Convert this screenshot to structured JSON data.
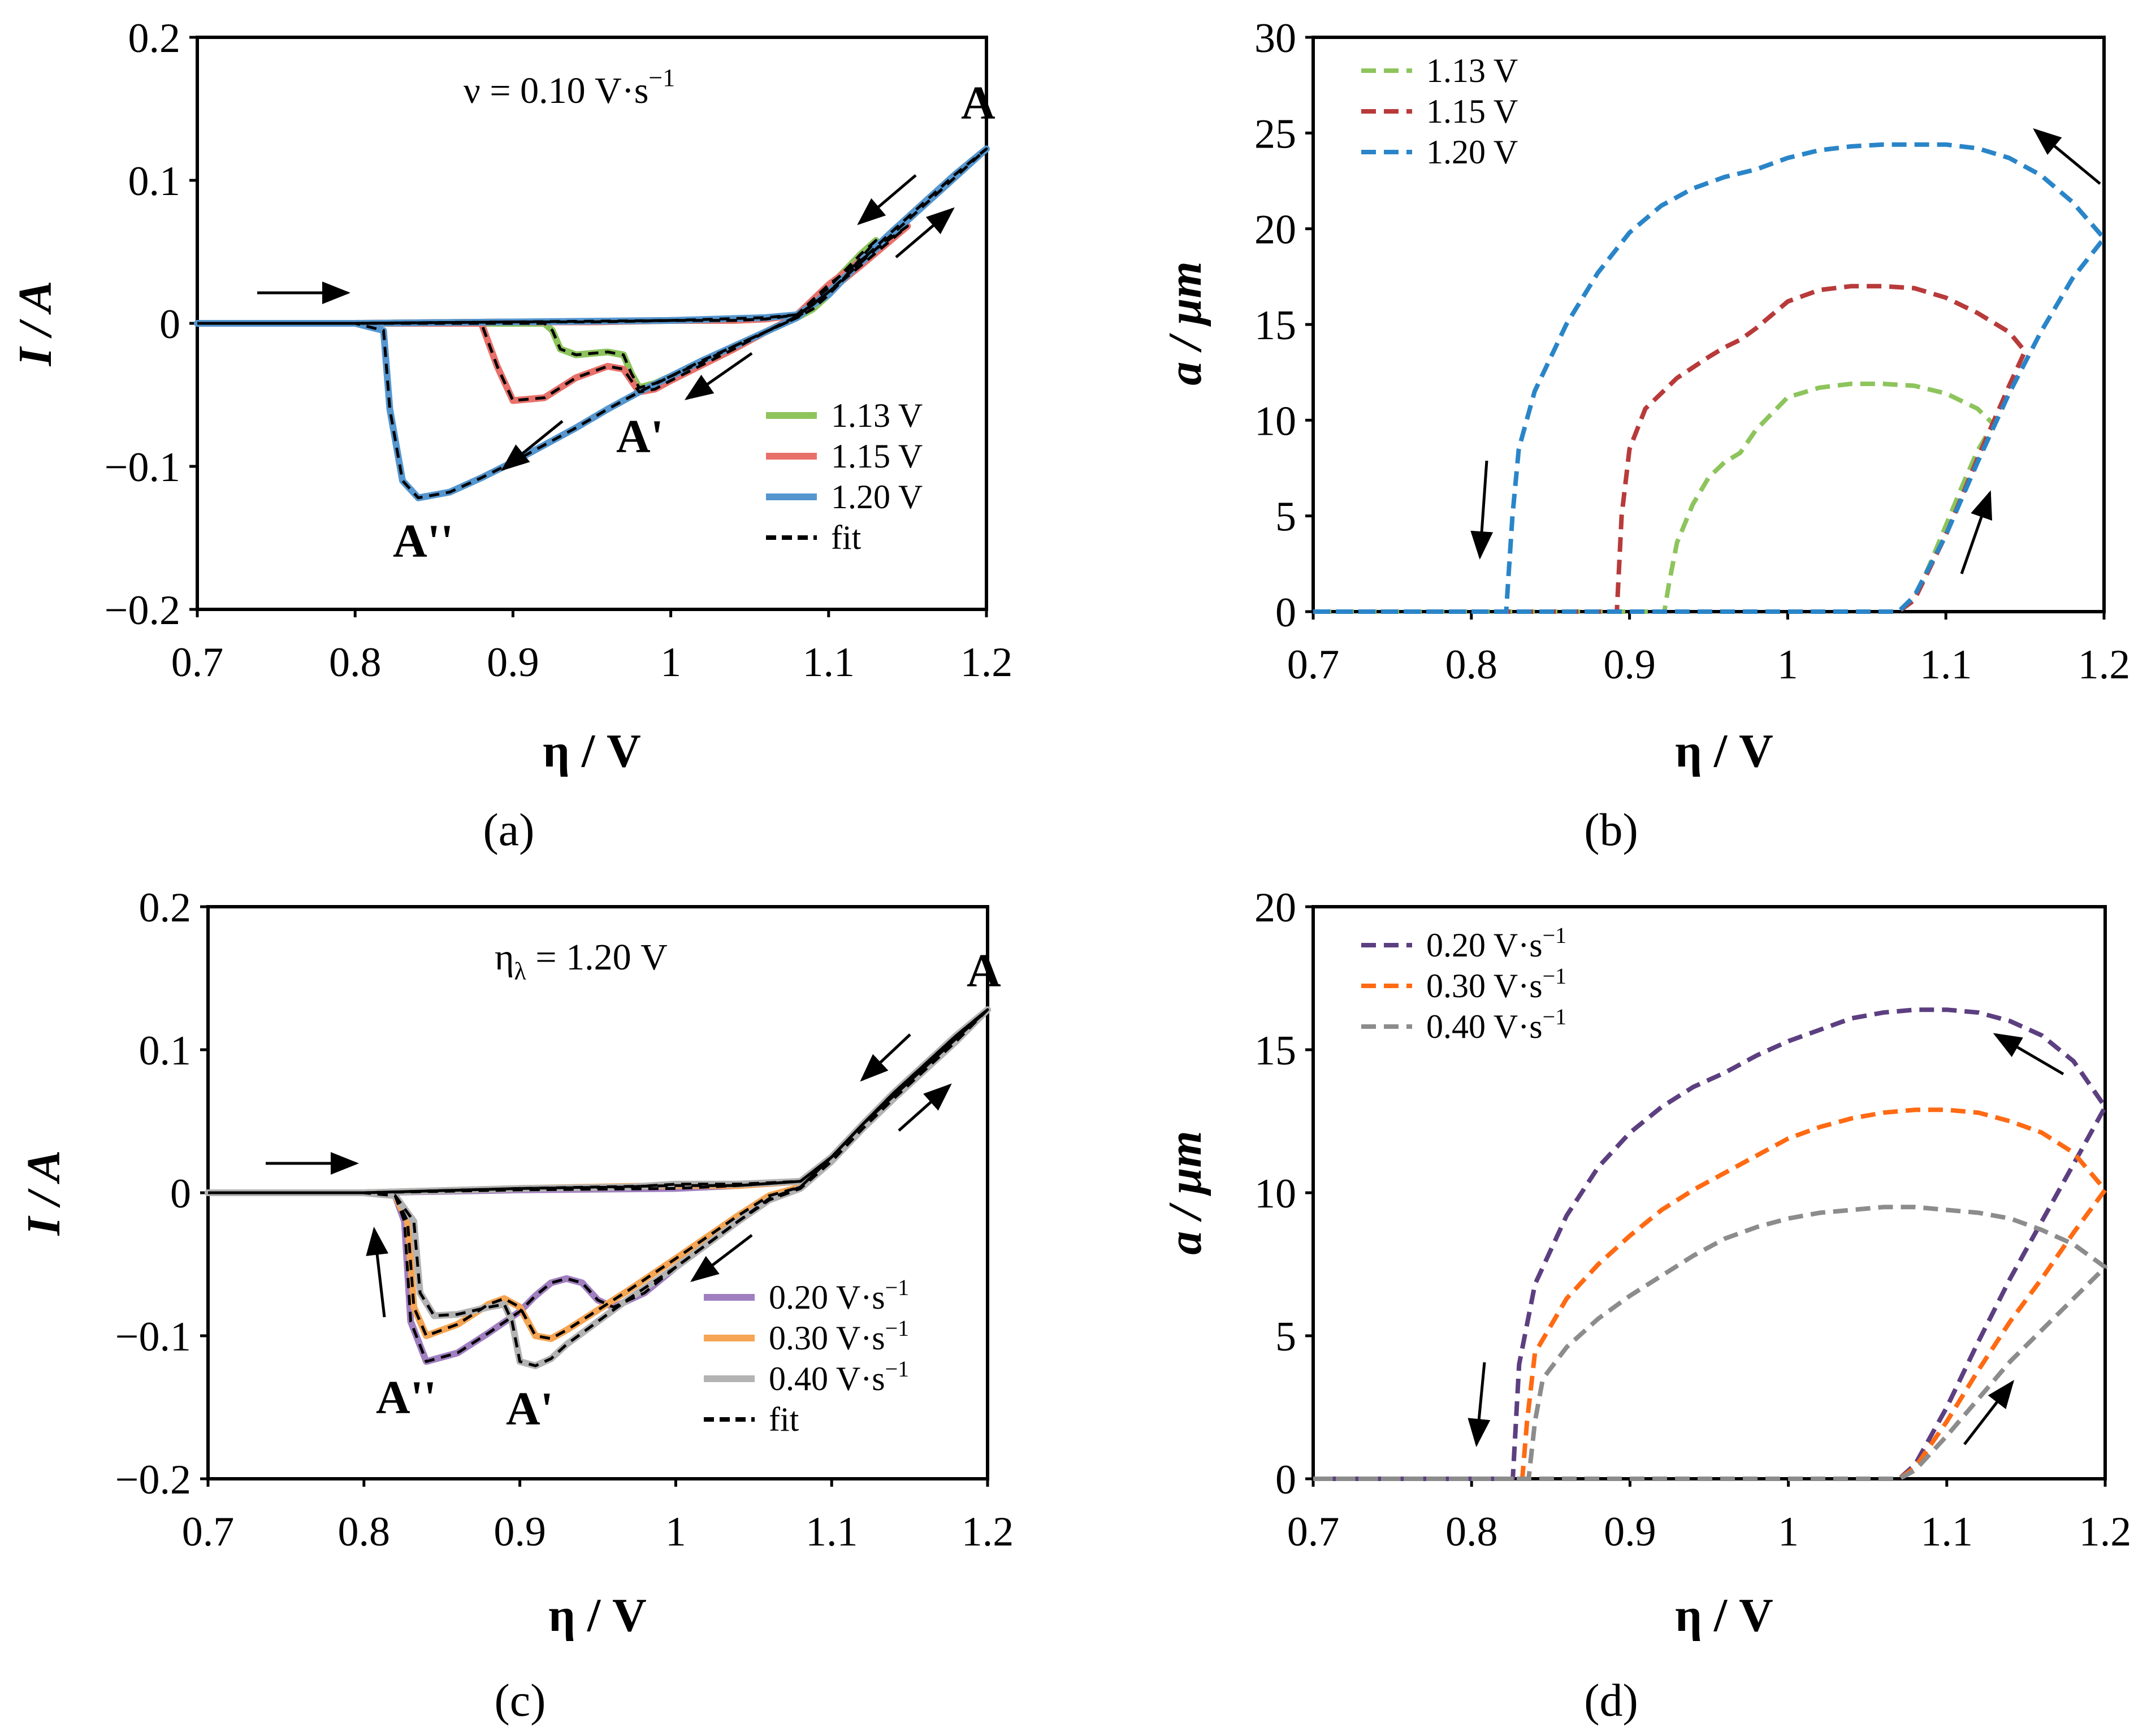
{
  "chart_data": [
    {
      "panel": "(a)",
      "type": "line",
      "xlabel": "η / V",
      "ylabel": "I / A",
      "xlim": [
        0.7,
        1.2
      ],
      "ylim": [
        -0.2,
        0.2
      ],
      "xticks": [
        "0.7",
        "0.8",
        "0.9",
        "1",
        "1.1",
        "1.2"
      ],
      "yticks": [
        "0.2",
        "0.1",
        "0",
        "−0.1",
        "−0.2"
      ],
      "annotation": "ν = 0.10 V·s",
      "annotation_sup": "−1",
      "peak_labels": [
        "A",
        "A'",
        "A''"
      ],
      "legend_position": "bottom-right",
      "series": [
        {
          "name": "1.13 V",
          "color": "#8dc45c",
          "dash": false,
          "x": [
            0.7,
            0.8,
            0.9,
            0.92,
            0.925,
            0.93,
            0.94,
            0.95,
            0.96,
            0.97,
            0.975,
            0.98,
            0.99,
            1.0,
            1.02,
            1.04,
            1.06,
            1.08,
            1.09,
            1.1,
            1.11,
            1.12,
            1.13,
            1.12,
            1.1,
            1.08,
            1.06,
            1.04,
            1.02,
            1.0,
            0.95,
            0.9,
            0.8,
            0.7
          ],
          "y": [
            0,
            0,
            0,
            0,
            -0.005,
            -0.018,
            -0.022,
            -0.021,
            -0.02,
            -0.022,
            -0.035,
            -0.045,
            -0.042,
            -0.037,
            -0.027,
            -0.016,
            -0.006,
            0.004,
            0.01,
            0.02,
            0.032,
            0.045,
            0.058,
            0.048,
            0.025,
            0.006,
            0.003,
            0.002,
            0.002,
            0.002,
            0.001,
            0.001,
            0,
            0
          ]
        },
        {
          "name": "1.15 V",
          "color": "#e8706a",
          "dash": false,
          "x": [
            0.7,
            0.8,
            0.88,
            0.89,
            0.9,
            0.92,
            0.94,
            0.96,
            0.97,
            0.975,
            0.98,
            0.99,
            1.0,
            1.02,
            1.04,
            1.06,
            1.08,
            1.1,
            1.12,
            1.15,
            1.13,
            1.1,
            1.08,
            1.06,
            1.04,
            1.0,
            0.95,
            0.9,
            0.8,
            0.7
          ],
          "y": [
            0,
            0,
            0,
            -0.03,
            -0.054,
            -0.052,
            -0.038,
            -0.03,
            -0.032,
            -0.04,
            -0.048,
            -0.046,
            -0.04,
            -0.029,
            -0.018,
            -0.006,
            0.005,
            0.022,
            0.04,
            0.068,
            0.052,
            0.027,
            0.006,
            0.003,
            0.002,
            0.002,
            0.001,
            0.001,
            0,
            0
          ]
        },
        {
          "name": "1.20 V",
          "color": "#5596cf",
          "dash": false,
          "x": [
            0.7,
            0.8,
            0.818,
            0.822,
            0.83,
            0.84,
            0.86,
            0.88,
            0.9,
            0.92,
            0.94,
            0.96,
            0.98,
            1.0,
            1.02,
            1.04,
            1.06,
            1.08,
            1.1,
            1.12,
            1.14,
            1.16,
            1.18,
            1.2,
            1.18,
            1.16,
            1.14,
            1.12,
            1.1,
            1.08,
            1.06,
            1.0,
            0.9,
            0.8,
            0.7
          ],
          "y": [
            0,
            0,
            -0.005,
            -0.06,
            -0.11,
            -0.122,
            -0.118,
            -0.108,
            -0.097,
            -0.085,
            -0.073,
            -0.06,
            -0.048,
            -0.037,
            -0.026,
            -0.016,
            -0.006,
            0.004,
            0.022,
            0.042,
            0.062,
            0.082,
            0.102,
            0.122,
            0.104,
            0.084,
            0.064,
            0.043,
            0.02,
            0.006,
            0.004,
            0.002,
            0.001,
            0,
            0
          ]
        },
        {
          "name": "fit",
          "color": "#000000",
          "dash": true,
          "overlay": true
        }
      ]
    },
    {
      "panel": "(b)",
      "type": "line",
      "xlabel": "η / V",
      "ylabel": "a / μm",
      "xlim": [
        0.7,
        1.2
      ],
      "ylim": [
        0,
        30
      ],
      "xticks": [
        "0.7",
        "0.8",
        "0.9",
        "1",
        "1.1",
        "1.2"
      ],
      "yticks": [
        "30",
        "25",
        "20",
        "15",
        "10",
        "5",
        "0"
      ],
      "legend_position": "top-left",
      "series": [
        {
          "name": "1.13 V",
          "color": "#8dc45c",
          "dash": true,
          "x": [
            0.7,
            0.8,
            0.9,
            1.0,
            1.07,
            1.08,
            1.09,
            1.1,
            1.11,
            1.12,
            1.13,
            1.12,
            1.1,
            1.08,
            1.06,
            1.04,
            1.02,
            1.0,
            0.98,
            0.97,
            0.96,
            0.95,
            0.94,
            0.93,
            0.925,
            0.922,
            0.9,
            0.8,
            0.7
          ],
          "y": [
            0,
            0,
            0,
            0,
            0,
            0.6,
            2.5,
            4.5,
            6.5,
            8.4,
            9.8,
            10.6,
            11.4,
            11.8,
            11.9,
            11.9,
            11.7,
            11.2,
            9.5,
            8.3,
            7.8,
            7.0,
            5.6,
            3.6,
            1.5,
            0,
            0,
            0,
            0
          ]
        },
        {
          "name": "1.15 V",
          "color": "#b83a3a",
          "dash": true,
          "x": [
            0.7,
            0.8,
            0.9,
            1.0,
            1.07,
            1.08,
            1.1,
            1.12,
            1.14,
            1.15,
            1.14,
            1.12,
            1.1,
            1.08,
            1.06,
            1.04,
            1.02,
            1.0,
            0.98,
            0.97,
            0.96,
            0.95,
            0.93,
            0.91,
            0.9,
            0.895,
            0.892,
            0.8,
            0.7
          ],
          "y": [
            0,
            0,
            0,
            0,
            0,
            0.6,
            4.0,
            8.0,
            11.8,
            13.6,
            14.6,
            15.6,
            16.4,
            16.9,
            17.0,
            17.0,
            16.8,
            16.2,
            14.8,
            14.2,
            13.8,
            13.3,
            12.2,
            10.6,
            8.5,
            5.0,
            0,
            0,
            0
          ]
        },
        {
          "name": "1.20 V",
          "color": "#2a85c8",
          "dash": true,
          "x": [
            0.7,
            0.8,
            0.9,
            1.0,
            1.07,
            1.08,
            1.1,
            1.12,
            1.14,
            1.16,
            1.18,
            1.2,
            1.18,
            1.16,
            1.14,
            1.12,
            1.1,
            1.08,
            1.06,
            1.04,
            1.02,
            1.0,
            0.98,
            0.96,
            0.94,
            0.92,
            0.9,
            0.88,
            0.86,
            0.84,
            0.83,
            0.826,
            0.822,
            0.8,
            0.7
          ],
          "y": [
            0,
            0,
            0,
            0,
            0,
            0.8,
            4.0,
            7.8,
            11.4,
            14.6,
            17.4,
            19.5,
            21.4,
            22.8,
            23.7,
            24.2,
            24.4,
            24.4,
            24.4,
            24.3,
            24.1,
            23.7,
            23.1,
            22.7,
            22.1,
            21.2,
            19.8,
            17.7,
            15.0,
            11.5,
            8.5,
            5.0,
            0,
            0,
            0
          ]
        }
      ]
    },
    {
      "panel": "(c)",
      "type": "line",
      "xlabel": "η / V",
      "ylabel": "I / A",
      "xlim": [
        0.7,
        1.2
      ],
      "ylim": [
        -0.2,
        0.2
      ],
      "xticks": [
        "0.7",
        "0.8",
        "0.9",
        "1",
        "1.1",
        "1.2"
      ],
      "yticks": [
        "0.2",
        "0.1",
        "0",
        "−0.1",
        "−0.2"
      ],
      "annotation": "η",
      "annotation_sub": "λ",
      "annotation_rest": " = 1.20 V",
      "peak_labels": [
        "A",
        "A''",
        "A'"
      ],
      "legend_position": "bottom-right",
      "series": [
        {
          "name": "0.20 V·s",
          "sup": "−1",
          "color": "#a07fc0",
          "dash": false,
          "x": [
            0.7,
            0.8,
            0.82,
            0.826,
            0.83,
            0.84,
            0.86,
            0.88,
            0.9,
            0.91,
            0.92,
            0.93,
            0.94,
            0.95,
            0.96,
            0.98,
            1.0,
            1.02,
            1.04,
            1.06,
            1.08,
            1.1,
            1.12,
            1.14,
            1.16,
            1.18,
            1.2,
            1.18,
            1.16,
            1.14,
            1.12,
            1.1,
            1.08,
            1.04,
            1.0,
            0.9,
            0.8,
            0.7
          ],
          "y": [
            0,
            0,
            -0.002,
            -0.02,
            -0.09,
            -0.118,
            -0.112,
            -0.098,
            -0.083,
            -0.072,
            -0.063,
            -0.06,
            -0.063,
            -0.075,
            -0.08,
            -0.07,
            -0.052,
            -0.036,
            -0.02,
            -0.004,
            0.004,
            0.025,
            0.048,
            0.068,
            0.088,
            0.108,
            0.128,
            0.11,
            0.09,
            0.07,
            0.048,
            0.025,
            0.008,
            0.005,
            0.003,
            0.002,
            0,
            0
          ]
        },
        {
          "name": "0.30 V·s",
          "sup": "−1",
          "color": "#f5a553",
          "dash": false,
          "x": [
            0.7,
            0.8,
            0.82,
            0.828,
            0.832,
            0.84,
            0.86,
            0.88,
            0.89,
            0.9,
            0.91,
            0.92,
            0.93,
            0.95,
            0.97,
            1.0,
            1.02,
            1.04,
            1.06,
            1.08,
            1.1,
            1.12,
            1.14,
            1.16,
            1.18,
            1.2,
            1.18,
            1.16,
            1.14,
            1.12,
            1.1,
            1.08,
            1.04,
            1.0,
            0.9,
            0.8,
            0.7
          ],
          "y": [
            0,
            0,
            -0.002,
            -0.02,
            -0.08,
            -0.1,
            -0.092,
            -0.078,
            -0.074,
            -0.08,
            -0.1,
            -0.102,
            -0.096,
            -0.082,
            -0.068,
            -0.046,
            -0.031,
            -0.016,
            -0.002,
            0.004,
            0.025,
            0.048,
            0.068,
            0.088,
            0.108,
            0.128,
            0.11,
            0.09,
            0.07,
            0.048,
            0.025,
            0.008,
            0.005,
            0.005,
            0.003,
            0,
            0
          ]
        },
        {
          "name": "0.40 V·s",
          "sup": "−1",
          "color": "#b3b3b3",
          "dash": false,
          "x": [
            0.7,
            0.8,
            0.82,
            0.832,
            0.836,
            0.845,
            0.86,
            0.88,
            0.89,
            0.895,
            0.9,
            0.91,
            0.92,
            0.93,
            0.95,
            0.97,
            1.0,
            1.02,
            1.04,
            1.06,
            1.08,
            1.1,
            1.12,
            1.14,
            1.16,
            1.18,
            1.2,
            1.18,
            1.16,
            1.14,
            1.12,
            1.1,
            1.08,
            1.04,
            1.0,
            0.97,
            0.9,
            0.8,
            0.7
          ],
          "y": [
            0,
            0,
            -0.002,
            -0.02,
            -0.07,
            -0.086,
            -0.085,
            -0.08,
            -0.078,
            -0.09,
            -0.118,
            -0.121,
            -0.116,
            -0.106,
            -0.09,
            -0.074,
            -0.052,
            -0.036,
            -0.02,
            -0.005,
            0.003,
            0.022,
            0.045,
            0.066,
            0.086,
            0.106,
            0.128,
            0.11,
            0.09,
            0.07,
            0.048,
            0.025,
            0.008,
            0.006,
            0.006,
            0.004,
            0.003,
            0,
            0
          ]
        },
        {
          "name": "fit",
          "color": "#000000",
          "dash": true,
          "overlay": true
        }
      ]
    },
    {
      "panel": "(d)",
      "type": "line",
      "xlabel": "η / V",
      "ylabel": "a / μm",
      "xlim": [
        0.7,
        1.2
      ],
      "ylim": [
        0,
        20
      ],
      "xticks": [
        "0.7",
        "0.8",
        "0.9",
        "1",
        "1.1",
        "1.2"
      ],
      "yticks": [
        "20",
        "15",
        "10",
        "5",
        "0"
      ],
      "legend_position": "top-left",
      "series": [
        {
          "name": "0.20 V·s",
          "sup": "−1",
          "color": "#5c3f80",
          "dash": true,
          "x": [
            0.7,
            0.8,
            0.9,
            1.0,
            1.07,
            1.08,
            1.1,
            1.12,
            1.14,
            1.16,
            1.18,
            1.2,
            1.18,
            1.16,
            1.14,
            1.12,
            1.1,
            1.08,
            1.06,
            1.04,
            1.02,
            1.0,
            0.98,
            0.96,
            0.94,
            0.92,
            0.9,
            0.88,
            0.86,
            0.84,
            0.83,
            0.826,
            0.8,
            0.7
          ],
          "y": [
            0,
            0,
            0,
            0,
            0,
            0.5,
            2.5,
            4.8,
            7.0,
            9.0,
            11.0,
            13.0,
            14.6,
            15.5,
            16.0,
            16.3,
            16.4,
            16.4,
            16.3,
            16.1,
            15.7,
            15.3,
            14.8,
            14.2,
            13.7,
            13.0,
            12.1,
            10.9,
            9.2,
            6.8,
            4.0,
            0,
            0,
            0
          ]
        },
        {
          "name": "0.30 V·s",
          "sup": "−1",
          "color": "#ff6a13",
          "dash": true,
          "x": [
            0.7,
            0.8,
            0.9,
            1.0,
            1.07,
            1.08,
            1.1,
            1.12,
            1.14,
            1.16,
            1.18,
            1.2,
            1.18,
            1.16,
            1.14,
            1.12,
            1.1,
            1.08,
            1.06,
            1.04,
            1.02,
            1.0,
            0.98,
            0.96,
            0.94,
            0.92,
            0.9,
            0.88,
            0.86,
            0.84,
            0.835,
            0.832,
            0.8,
            0.7
          ],
          "y": [
            0,
            0,
            0,
            0,
            0,
            0.4,
            2.0,
            3.8,
            5.5,
            7.0,
            8.6,
            10.1,
            11.4,
            12.1,
            12.5,
            12.8,
            12.9,
            12.9,
            12.8,
            12.6,
            12.3,
            11.9,
            11.3,
            10.7,
            10.1,
            9.4,
            8.5,
            7.5,
            6.3,
            4.4,
            2.0,
            0,
            0,
            0
          ]
        },
        {
          "name": "0.40 V·s",
          "sup": "−1",
          "color": "#8c8c8c",
          "dash": true,
          "x": [
            0.7,
            0.8,
            0.9,
            1.0,
            1.07,
            1.08,
            1.1,
            1.12,
            1.14,
            1.16,
            1.18,
            1.2,
            1.18,
            1.16,
            1.14,
            1.12,
            1.1,
            1.08,
            1.06,
            1.04,
            1.02,
            1.0,
            0.98,
            0.96,
            0.94,
            0.92,
            0.9,
            0.88,
            0.86,
            0.845,
            0.84,
            0.836,
            0.8,
            0.7
          ],
          "y": [
            0,
            0,
            0,
            0,
            0,
            0.3,
            1.5,
            2.8,
            4.1,
            5.2,
            6.3,
            7.4,
            8.2,
            8.7,
            9.1,
            9.3,
            9.4,
            9.5,
            9.5,
            9.4,
            9.3,
            9.1,
            8.8,
            8.4,
            7.8,
            7.1,
            6.4,
            5.6,
            4.6,
            3.5,
            2.0,
            0,
            0,
            0
          ]
        }
      ]
    }
  ]
}
